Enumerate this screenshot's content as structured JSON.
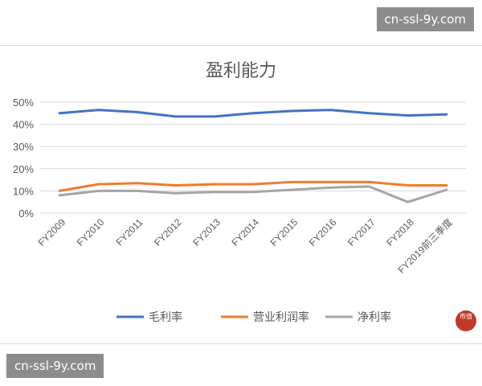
{
  "watermarks": {
    "top_right": "cn-ssl-9y.com",
    "bottom_left": "cn-ssl-9y.com"
  },
  "stamp_text": "市值",
  "chart_data": {
    "type": "line",
    "title": "盈利能力",
    "xlabel": "",
    "ylabel": "",
    "categories": [
      "FY2009",
      "FY2010",
      "FY2011",
      "FY2012",
      "FY2013",
      "FY2014",
      "FY2015",
      "FY2016",
      "FY2017",
      "FY2018",
      "FY2019前三季度"
    ],
    "ylim": [
      0,
      0.5
    ],
    "yticks": [
      0,
      0.1,
      0.2,
      0.3,
      0.4,
      0.5
    ],
    "ytick_labels": [
      "0%",
      "10%",
      "20%",
      "30%",
      "40%",
      "50%"
    ],
    "grid": "horizontal",
    "legend_position": "bottom",
    "series": [
      {
        "name": "毛利率",
        "color": "#4472c4",
        "values": [
          0.45,
          0.465,
          0.455,
          0.435,
          0.435,
          0.45,
          0.46,
          0.465,
          0.45,
          0.44,
          0.445
        ]
      },
      {
        "name": "营业利润率",
        "color": "#ed7d31",
        "values": [
          0.1,
          0.13,
          0.135,
          0.125,
          0.13,
          0.13,
          0.14,
          0.14,
          0.14,
          0.125,
          0.125
        ]
      },
      {
        "name": "净利率",
        "color": "#a5a5a5",
        "values": [
          0.08,
          0.1,
          0.1,
          0.09,
          0.095,
          0.095,
          0.105,
          0.115,
          0.12,
          0.05,
          0.105
        ]
      }
    ]
  }
}
